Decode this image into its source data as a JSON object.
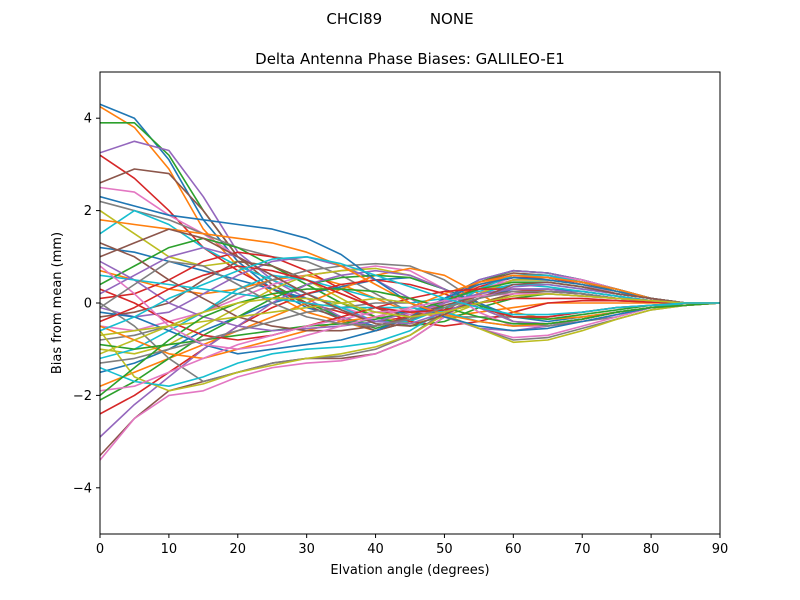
{
  "suptitle": "CHCI89          NONE",
  "chart_data": {
    "type": "line",
    "title": "Delta Antenna Phase Biases: GALILEO-E1",
    "xlabel": "Elvation angle (degrees)",
    "ylabel": "Bias from mean (mm)",
    "xlim": [
      0,
      90
    ],
    "ylim": [
      -5,
      5
    ],
    "x_ticks": [
      0,
      10,
      20,
      30,
      40,
      50,
      60,
      70,
      80,
      90
    ],
    "y_ticks": [
      -4,
      -2,
      0,
      2,
      4
    ],
    "grid": false,
    "legend": "none",
    "colors": [
      "#1f77b4",
      "#ff7f0e",
      "#2ca02c",
      "#d62728",
      "#9467bd",
      "#8c564b",
      "#e377c2",
      "#7f7f7f",
      "#bcbd22",
      "#17becf"
    ],
    "x": [
      0,
      5,
      10,
      15,
      20,
      25,
      30,
      35,
      40,
      45,
      50,
      55,
      60,
      65,
      70,
      75,
      80,
      85,
      90
    ],
    "series": [
      {
        "values": [
          4.3,
          4.0,
          3.1,
          1.8,
          0.9,
          0.3,
          -0.1,
          -0.3,
          -0.5,
          -0.3,
          0.1,
          0.5,
          0.7,
          0.65,
          0.5,
          0.3,
          0.1,
          0.0,
          0.0
        ]
      },
      {
        "values": [
          4.25,
          3.8,
          2.9,
          1.6,
          0.8,
          0.2,
          -0.2,
          -0.4,
          -0.6,
          -0.4,
          0.0,
          0.4,
          0.6,
          0.6,
          0.45,
          0.25,
          0.1,
          0.0,
          0.0
        ]
      },
      {
        "values": [
          3.9,
          3.9,
          3.2,
          2.0,
          1.0,
          0.4,
          0.0,
          -0.3,
          -0.55,
          -0.35,
          0.05,
          0.45,
          0.7,
          0.65,
          0.5,
          0.3,
          0.1,
          0.0,
          0.0
        ]
      },
      {
        "values": [
          3.2,
          2.7,
          2.0,
          1.2,
          0.7,
          0.3,
          0.0,
          -0.2,
          -0.4,
          -0.3,
          0.0,
          0.35,
          0.55,
          0.55,
          0.4,
          0.2,
          0.1,
          0.0,
          0.0
        ]
      },
      {
        "values": [
          3.25,
          3.5,
          3.3,
          2.3,
          1.1,
          0.5,
          0.1,
          -0.3,
          -0.6,
          -0.4,
          0.0,
          0.5,
          0.7,
          0.65,
          0.5,
          0.3,
          0.1,
          0.0,
          0.0
        ]
      },
      {
        "values": [
          2.6,
          2.9,
          2.8,
          2.0,
          1.0,
          0.4,
          -0.05,
          -0.35,
          -0.6,
          -0.4,
          0.05,
          0.45,
          0.65,
          0.6,
          0.45,
          0.25,
          0.1,
          0.0,
          0.0
        ]
      },
      {
        "values": [
          2.5,
          2.4,
          1.9,
          1.5,
          1.0,
          0.6,
          0.2,
          -0.1,
          -0.3,
          -0.25,
          0.0,
          0.3,
          0.5,
          0.5,
          0.4,
          0.2,
          0.1,
          0.0,
          0.0
        ]
      },
      {
        "values": [
          2.2,
          2.0,
          1.8,
          1.5,
          1.2,
          1.0,
          0.9,
          0.6,
          0.2,
          -0.2,
          -0.3,
          -0.3,
          -0.3,
          -0.3,
          -0.2,
          -0.1,
          -0.05,
          0.0,
          0.0
        ]
      },
      {
        "values": [
          2.0,
          1.5,
          1.0,
          0.8,
          0.9,
          0.8,
          0.5,
          0.1,
          -0.3,
          -0.45,
          -0.3,
          0.0,
          0.2,
          0.3,
          0.25,
          0.15,
          0.05,
          0.0,
          0.0
        ]
      },
      {
        "values": [
          1.5,
          2.0,
          1.7,
          1.2,
          0.8,
          0.5,
          0.2,
          -0.1,
          -0.4,
          -0.4,
          -0.1,
          0.2,
          0.4,
          0.4,
          0.3,
          0.2,
          0.1,
          0.0,
          0.0
        ]
      },
      {
        "values": [
          1.2,
          1.1,
          0.9,
          0.7,
          0.5,
          0.3,
          0.1,
          0.0,
          -0.2,
          -0.2,
          -0.1,
          0.1,
          0.3,
          0.3,
          0.25,
          0.15,
          0.05,
          0.0,
          0.0
        ]
      },
      {
        "values": [
          0.7,
          0.5,
          0.3,
          0.2,
          0.3,
          0.5,
          0.6,
          0.4,
          0.1,
          -0.2,
          -0.3,
          -0.2,
          -0.1,
          0.0,
          0.0,
          0.0,
          0.0,
          0.0,
          0.0
        ]
      },
      {
        "values": [
          0.4,
          0.8,
          1.2,
          1.4,
          1.2,
          0.8,
          0.4,
          0.0,
          -0.3,
          -0.5,
          -0.4,
          -0.1,
          0.1,
          0.2,
          0.15,
          0.1,
          0.05,
          0.0,
          0.0
        ]
      },
      {
        "values": [
          0.1,
          0.2,
          0.5,
          0.9,
          1.1,
          1.0,
          0.7,
          0.3,
          -0.1,
          -0.4,
          -0.5,
          -0.4,
          -0.2,
          0.0,
          0.05,
          0.05,
          0.02,
          0.0,
          0.0
        ]
      },
      {
        "values": [
          -0.1,
          -0.3,
          -0.2,
          0.2,
          0.6,
          0.9,
          1.0,
          0.8,
          0.5,
          0.1,
          -0.3,
          -0.55,
          -0.6,
          -0.5,
          -0.35,
          -0.2,
          -0.1,
          -0.05,
          0.0
        ]
      },
      {
        "values": [
          -0.3,
          -0.2,
          0.0,
          0.5,
          0.9,
          0.8,
          0.5,
          0.2,
          -0.1,
          -0.3,
          -0.2,
          0.0,
          0.2,
          0.25,
          0.2,
          0.1,
          0.05,
          0.0,
          0.0
        ]
      },
      {
        "values": [
          -0.5,
          -0.6,
          -0.4,
          -0.2,
          0.1,
          0.4,
          0.6,
          0.7,
          0.8,
          0.7,
          0.3,
          -0.2,
          -0.5,
          -0.5,
          -0.4,
          -0.25,
          -0.1,
          0.0,
          0.0
        ]
      },
      {
        "values": [
          -0.8,
          -0.7,
          -0.5,
          -0.2,
          0.2,
          0.5,
          0.7,
          0.8,
          0.85,
          0.8,
          0.5,
          0.0,
          -0.4,
          -0.5,
          -0.4,
          -0.3,
          -0.1,
          -0.05,
          0.0
        ]
      },
      {
        "values": [
          -1.0,
          -1.1,
          -0.9,
          -0.5,
          -0.1,
          0.3,
          0.6,
          0.7,
          0.75,
          0.6,
          0.3,
          -0.1,
          -0.4,
          -0.45,
          -0.35,
          -0.2,
          -0.1,
          -0.05,
          0.0
        ]
      },
      {
        "values": [
          -1.2,
          -1.0,
          -0.6,
          -0.2,
          0.3,
          0.6,
          0.5,
          0.3,
          0.1,
          0.0,
          0.1,
          0.25,
          0.4,
          0.35,
          0.25,
          0.15,
          0.05,
          0.0,
          0.0
        ]
      },
      {
        "values": [
          -1.5,
          -1.3,
          -1.0,
          -0.6,
          -0.3,
          0.0,
          0.2,
          0.35,
          0.5,
          0.55,
          0.3,
          0.0,
          -0.3,
          -0.4,
          -0.3,
          -0.2,
          -0.1,
          0.0,
          0.0
        ]
      },
      {
        "values": [
          -1.8,
          -1.5,
          -1.2,
          -0.9,
          -0.6,
          -0.3,
          0.0,
          0.3,
          0.6,
          0.75,
          0.6,
          0.2,
          -0.2,
          -0.35,
          -0.3,
          -0.2,
          -0.1,
          -0.05,
          0.0
        ]
      },
      {
        "values": [
          -2.1,
          -1.7,
          -1.2,
          -0.7,
          -0.3,
          0.1,
          0.4,
          0.55,
          0.6,
          0.55,
          0.3,
          -0.05,
          -0.3,
          -0.35,
          -0.25,
          -0.15,
          -0.05,
          0.0,
          0.0
        ]
      },
      {
        "values": [
          -2.4,
          -2.0,
          -1.5,
          -1.0,
          -0.5,
          -0.1,
          0.2,
          0.4,
          0.5,
          0.4,
          0.2,
          -0.1,
          -0.3,
          -0.3,
          -0.2,
          -0.1,
          -0.05,
          0.0,
          0.0
        ]
      },
      {
        "values": [
          -2.9,
          -2.2,
          -1.6,
          -1.0,
          -0.5,
          0.0,
          0.4,
          0.6,
          0.7,
          0.6,
          0.3,
          -0.1,
          -0.4,
          -0.45,
          -0.35,
          -0.2,
          -0.1,
          -0.05,
          0.0
        ]
      },
      {
        "values": [
          -3.3,
          -2.5,
          -1.9,
          -1.7,
          -1.5,
          -1.3,
          -1.2,
          -1.2,
          -1.1,
          -0.8,
          -0.3,
          0.2,
          0.5,
          0.55,
          0.45,
          0.3,
          0.1,
          0.0,
          0.0
        ]
      },
      {
        "values": [
          -3.4,
          -2.5,
          -2.0,
          -1.9,
          -1.6,
          -1.4,
          -1.3,
          -1.25,
          -1.1,
          -0.8,
          -0.3,
          0.2,
          0.6,
          0.6,
          0.5,
          0.3,
          0.1,
          0.0,
          0.0
        ]
      },
      {
        "values": [
          0.0,
          -0.5,
          -1.2,
          -1.7,
          -1.5,
          -1.3,
          -1.2,
          -1.15,
          -1.0,
          -0.7,
          -0.2,
          0.3,
          0.6,
          0.55,
          0.45,
          0.3,
          0.1,
          0.0,
          0.0
        ]
      },
      {
        "values": [
          -0.6,
          -1.6,
          -1.9,
          -1.75,
          -1.5,
          -1.35,
          -1.2,
          -1.1,
          -0.95,
          -0.7,
          -0.25,
          0.2,
          0.5,
          0.5,
          0.4,
          0.25,
          0.1,
          0.0,
          0.0
        ]
      },
      {
        "values": [
          -1.4,
          -1.7,
          -1.8,
          -1.6,
          -1.3,
          -1.1,
          -1.0,
          -0.95,
          -0.85,
          -0.6,
          -0.15,
          0.3,
          0.6,
          0.6,
          0.45,
          0.3,
          0.1,
          0.0,
          0.0
        ]
      },
      {
        "values": [
          -0.2,
          -0.3,
          -0.6,
          -0.9,
          -1.1,
          -1.0,
          -0.9,
          -0.8,
          -0.6,
          -0.3,
          0.1,
          0.4,
          0.55,
          0.5,
          0.4,
          0.25,
          0.1,
          0.0,
          0.0
        ]
      },
      {
        "values": [
          -0.5,
          -0.8,
          -1.1,
          -1.2,
          -1.0,
          -0.8,
          -0.6,
          -0.4,
          -0.3,
          -0.1,
          0.2,
          0.45,
          0.6,
          0.55,
          0.45,
          0.3,
          0.1,
          0.0,
          0.0
        ]
      },
      {
        "values": [
          -0.9,
          -1.0,
          -0.9,
          -0.8,
          -0.7,
          -0.6,
          -0.5,
          -0.45,
          -0.35,
          -0.2,
          0.05,
          0.3,
          0.45,
          0.45,
          0.35,
          0.2,
          0.1,
          0.0,
          0.0
        ]
      },
      {
        "values": [
          0.3,
          0.0,
          -0.4,
          -0.7,
          -0.8,
          -0.7,
          -0.5,
          -0.3,
          -0.1,
          0.1,
          0.25,
          0.3,
          0.3,
          0.25,
          0.2,
          0.1,
          0.05,
          0.0,
          0.0
        ]
      },
      {
        "values": [
          0.9,
          0.5,
          0.0,
          -0.3,
          -0.5,
          -0.6,
          -0.55,
          -0.5,
          -0.4,
          -0.2,
          0.0,
          0.2,
          0.3,
          0.3,
          0.2,
          0.1,
          0.05,
          0.0,
          0.0
        ]
      },
      {
        "values": [
          1.3,
          1.0,
          0.5,
          0.1,
          -0.3,
          -0.5,
          -0.6,
          -0.6,
          -0.5,
          -0.3,
          -0.05,
          0.15,
          0.25,
          0.25,
          0.2,
          0.1,
          0.05,
          0.0,
          0.0
        ]
      },
      {
        "values": [
          -1.9,
          -1.8,
          -1.5,
          -1.2,
          -0.9,
          -0.7,
          -0.5,
          -0.35,
          -0.2,
          -0.15,
          -0.3,
          -0.55,
          -0.75,
          -0.7,
          -0.5,
          -0.3,
          -0.1,
          -0.05,
          0.0
        ]
      },
      {
        "values": [
          -1.3,
          -1.2,
          -1.0,
          -0.8,
          -0.6,
          -0.4,
          -0.2,
          -0.1,
          0.0,
          0.0,
          -0.25,
          -0.55,
          -0.8,
          -0.75,
          -0.55,
          -0.35,
          -0.15,
          -0.05,
          0.0
        ]
      },
      {
        "values": [
          -0.7,
          -0.6,
          -0.5,
          -0.4,
          -0.3,
          -0.2,
          -0.1,
          0.0,
          0.1,
          0.0,
          -0.25,
          -0.55,
          -0.85,
          -0.8,
          -0.6,
          -0.35,
          -0.15,
          -0.05,
          0.0
        ]
      },
      {
        "values": [
          0.6,
          0.5,
          0.4,
          0.3,
          0.2,
          0.1,
          0.0,
          -0.1,
          -0.1,
          -0.1,
          -0.2,
          -0.4,
          -0.5,
          -0.45,
          -0.35,
          -0.2,
          -0.1,
          0.0,
          0.0
        ]
      },
      {
        "values": [
          2.3,
          2.1,
          1.9,
          1.8,
          1.7,
          1.6,
          1.4,
          1.05,
          0.5,
          0.0,
          -0.3,
          -0.5,
          -0.6,
          -0.55,
          -0.4,
          -0.25,
          -0.1,
          -0.05,
          0.0
        ]
      },
      {
        "values": [
          1.8,
          1.7,
          1.6,
          1.5,
          1.4,
          1.3,
          1.1,
          0.8,
          0.4,
          0.0,
          -0.25,
          -0.4,
          -0.5,
          -0.45,
          -0.35,
          -0.2,
          -0.1,
          -0.05,
          0.0
        ]
      },
      {
        "values": [
          -2.0,
          -1.4,
          -0.8,
          -0.3,
          0.0,
          0.2,
          0.3,
          0.3,
          0.25,
          0.1,
          -0.1,
          -0.3,
          -0.45,
          -0.45,
          -0.35,
          -0.2,
          -0.1,
          -0.05,
          0.0
        ]
      },
      {
        "values": [
          -0.4,
          -0.1,
          0.3,
          0.6,
          0.8,
          0.7,
          0.5,
          0.2,
          -0.1,
          -0.2,
          -0.15,
          0.0,
          0.1,
          0.1,
          0.1,
          0.05,
          0.02,
          0.0,
          0.0
        ]
      },
      {
        "values": [
          0.2,
          0.6,
          1.0,
          1.2,
          1.0,
          0.6,
          0.2,
          -0.15,
          -0.4,
          -0.45,
          -0.2,
          0.1,
          0.35,
          0.4,
          0.3,
          0.2,
          0.1,
          0.0,
          0.0
        ]
      },
      {
        "values": [
          1.0,
          1.3,
          1.6,
          1.4,
          1.0,
          0.6,
          0.2,
          -0.15,
          -0.45,
          -0.5,
          -0.25,
          0.1,
          0.4,
          0.45,
          0.35,
          0.2,
          0.1,
          0.0,
          0.0
        ]
      },
      {
        "values": [
          0.8,
          0.2,
          -0.5,
          -0.9,
          -1.0,
          -0.9,
          -0.7,
          -0.5,
          -0.3,
          -0.1,
          0.05,
          0.15,
          0.2,
          0.2,
          0.15,
          0.1,
          0.05,
          0.0,
          0.0
        ]
      },
      {
        "values": [
          -0.1,
          0.4,
          0.9,
          0.8,
          0.4,
          0.0,
          -0.3,
          -0.45,
          -0.5,
          -0.35,
          -0.1,
          0.1,
          0.25,
          0.25,
          0.2,
          0.1,
          0.05,
          0.0,
          0.0
        ]
      },
      {
        "values": [
          -1.1,
          -0.8,
          -0.5,
          -0.2,
          0.0,
          0.1,
          0.1,
          0.0,
          -0.2,
          -0.3,
          -0.2,
          0.0,
          0.15,
          0.2,
          0.15,
          0.1,
          0.05,
          0.0,
          0.0
        ]
      },
      {
        "values": [
          -0.6,
          -0.3,
          0.1,
          0.4,
          0.7,
          0.95,
          1.0,
          0.85,
          0.6,
          0.35,
          0.1,
          -0.1,
          -0.25,
          -0.25,
          -0.2,
          -0.1,
          -0.05,
          0.0,
          0.0
        ]
      }
    ]
  }
}
